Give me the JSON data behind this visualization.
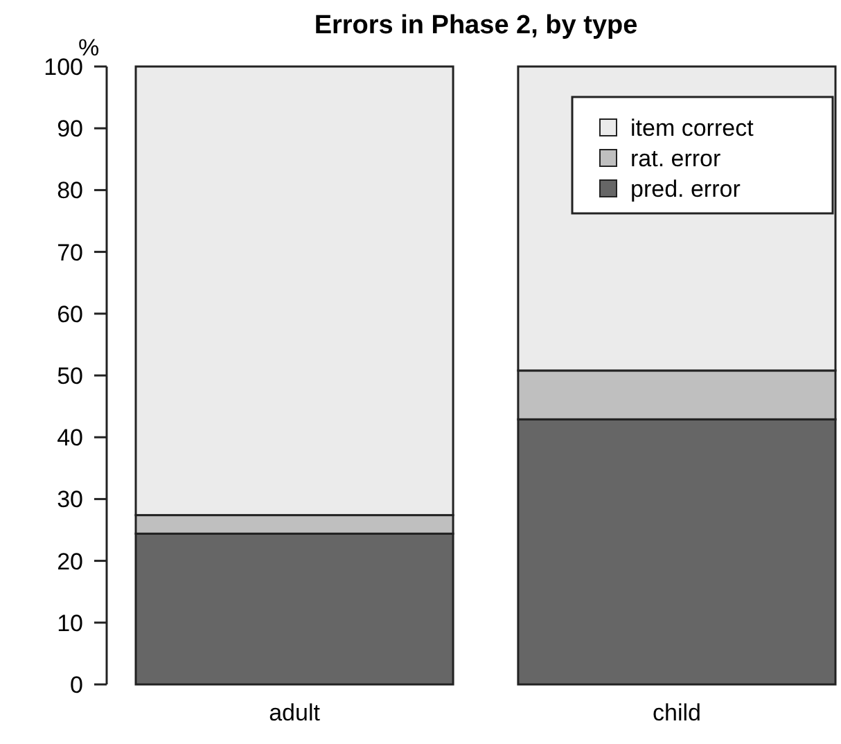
{
  "chart_data": {
    "type": "bar",
    "title": "Errors in Phase 2, by type",
    "ylabel": "%",
    "categories": [
      "adult",
      "child"
    ],
    "stacked": true,
    "series": [
      {
        "name": "pred. error",
        "color": "#666666",
        "values": [
          24.4,
          42.9
        ]
      },
      {
        "name": "rat. error",
        "color": "#bfbfbf",
        "values": [
          3.0,
          7.9
        ]
      },
      {
        "name": "item correct",
        "color": "#ebebeb",
        "values": [
          72.6,
          49.2
        ]
      }
    ],
    "ylim": [
      0,
      100
    ],
    "yticks": [
      0,
      10,
      20,
      30,
      40,
      50,
      60,
      70,
      80,
      90,
      100
    ],
    "legend": "top right"
  }
}
